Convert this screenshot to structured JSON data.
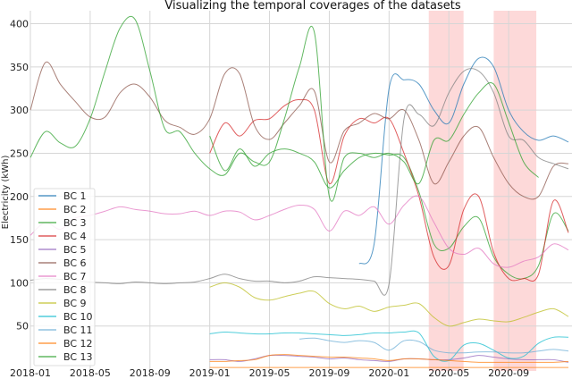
{
  "chart_data": {
    "type": "line",
    "title": "Visualizing the temporal coverages of the datasets",
    "xlabel": "",
    "ylabel": "Electricity (kWh)",
    "xlim": [
      "2018-01",
      "2021-01"
    ],
    "ylim": [
      -2,
      415
    ],
    "x_ticks": [
      "2018-01",
      "2018-05",
      "2018-09",
      "2019-01",
      "2019-05",
      "2019-09",
      "2020-01",
      "2020-05",
      "2020-09"
    ],
    "y_ticks": [
      50,
      100,
      150,
      200,
      250,
      300,
      350,
      400
    ],
    "grid": true,
    "legend_placement": "lower-left",
    "shaded_periods": [
      {
        "start": "2020-03-21",
        "end": "2020-05-31",
        "color": "#fdd9d9"
      },
      {
        "start": "2020-08-01",
        "end": "2020-10-27",
        "color": "#fdd9d9"
      }
    ],
    "x": [
      "2018-01",
      "2018-02",
      "2018-03",
      "2018-04",
      "2018-05",
      "2018-06",
      "2018-07",
      "2018-08",
      "2018-09",
      "2018-10",
      "2018-11",
      "2018-12",
      "2019-01",
      "2019-02",
      "2019-03",
      "2019-04",
      "2019-05",
      "2019-06",
      "2019-07",
      "2019-08",
      "2019-09",
      "2019-10",
      "2019-11",
      "2019-12",
      "2020-01",
      "2020-02",
      "2020-03",
      "2020-04",
      "2020-05",
      "2020-06",
      "2020-07",
      "2020-08",
      "2020-09",
      "2020-10",
      "2020-11",
      "2020-12",
      "2021-01"
    ],
    "series": [
      {
        "name": "BC 1",
        "color": "#1f77b4",
        "values": [
          null,
          null,
          null,
          null,
          null,
          null,
          null,
          null,
          null,
          null,
          null,
          null,
          null,
          null,
          null,
          null,
          null,
          null,
          null,
          null,
          null,
          null,
          122,
          145,
          325,
          335,
          330,
          300,
          285,
          330,
          360,
          350,
          300,
          275,
          265,
          270,
          263
        ]
      },
      {
        "name": "BC 2",
        "color": "#ff7f0e",
        "values": [
          null,
          null,
          null,
          null,
          null,
          null,
          null,
          null,
          null,
          null,
          null,
          null,
          2,
          2,
          2,
          2,
          2,
          2,
          2,
          2,
          2,
          2,
          2,
          2,
          2,
          2,
          2,
          2,
          2,
          2,
          2,
          2,
          2,
          2,
          2,
          2,
          2
        ]
      },
      {
        "name": "BC 3",
        "color": "#2ca02c",
        "values": [
          null,
          null,
          null,
          null,
          null,
          null,
          null,
          null,
          null,
          null,
          null,
          null,
          270,
          230,
          255,
          235,
          250,
          255,
          250,
          240,
          210,
          230,
          245,
          250,
          248,
          245,
          205,
          145,
          140,
          165,
          175,
          130,
          110,
          105,
          120,
          180,
          160
        ]
      },
      {
        "name": "BC 4",
        "color": "#d62728",
        "values": [
          null,
          null,
          null,
          null,
          null,
          null,
          null,
          null,
          null,
          null,
          null,
          null,
          250,
          285,
          270,
          288,
          290,
          305,
          312,
          300,
          215,
          270,
          290,
          285,
          290,
          250,
          200,
          130,
          120,
          185,
          200,
          135,
          105,
          105,
          110,
          195,
          158
        ]
      },
      {
        "name": "BC 5",
        "color": "#9467bd",
        "values": [
          null,
          null,
          null,
          null,
          null,
          null,
          null,
          null,
          null,
          null,
          null,
          null,
          11,
          11,
          9,
          12,
          16,
          16,
          15,
          14,
          12,
          13,
          11,
          10,
          9,
          12,
          12,
          11,
          11,
          13,
          16,
          14,
          12,
          11,
          11,
          11,
          8
        ]
      },
      {
        "name": "BC 6",
        "color": "#8c564b",
        "values": [
          300,
          355,
          330,
          310,
          292,
          292,
          320,
          330,
          315,
          288,
          280,
          272,
          290,
          342,
          342,
          282,
          266,
          285,
          305,
          322,
          240,
          276,
          285,
          296,
          290,
          300,
          265,
          215,
          240,
          270,
          280,
          245,
          215,
          200,
          200,
          235,
          238
        ]
      },
      {
        "name": "BC 7",
        "color": "#e377c2",
        "values": [
          155,
          170,
          162,
          175,
          178,
          183,
          188,
          185,
          183,
          180,
          180,
          183,
          178,
          183,
          182,
          173,
          178,
          185,
          190,
          185,
          160,
          183,
          178,
          188,
          168,
          190,
          200,
          170,
          140,
          133,
          140,
          122,
          118,
          125,
          130,
          145,
          138
        ]
      },
      {
        "name": "BC 8",
        "color": "#7f7f7f",
        "values": [
          103,
          105,
          104,
          103,
          101,
          100,
          99,
          101,
          100,
          99,
          100,
          101,
          105,
          110,
          105,
          102,
          102,
          100,
          102,
          107,
          106,
          105,
          104,
          102,
          99,
          290,
          295,
          282,
          320,
          345,
          345,
          320,
          270,
          265,
          245,
          238,
          232
        ]
      },
      {
        "name": "BC 9",
        "color": "#bcbd22",
        "values": [
          null,
          null,
          null,
          null,
          null,
          null,
          null,
          null,
          null,
          null,
          null,
          null,
          95,
          100,
          95,
          83,
          80,
          84,
          88,
          90,
          76,
          70,
          73,
          67,
          72,
          74,
          76,
          60,
          50,
          54,
          58,
          56,
          55,
          60,
          66,
          70,
          61
        ]
      },
      {
        "name": "BC 10",
        "color": "#17becf",
        "values": [
          null,
          null,
          null,
          null,
          null,
          null,
          null,
          null,
          null,
          null,
          null,
          null,
          41,
          43,
          42,
          41,
          41,
          42,
          42,
          41,
          40,
          39,
          40,
          42,
          42,
          43,
          42,
          15,
          10,
          28,
          30,
          22,
          13,
          15,
          30,
          37,
          37
        ]
      },
      {
        "name": "BC 11",
        "color": "#6baed6",
        "values": [
          null,
          null,
          null,
          null,
          null,
          null,
          null,
          null,
          null,
          null,
          null,
          null,
          null,
          null,
          null,
          null,
          null,
          null,
          35,
          36,
          33,
          31,
          33,
          31,
          22,
          33,
          32,
          22,
          19,
          19,
          20,
          20,
          19,
          19,
          21,
          23,
          21
        ]
      },
      {
        "name": "BC 12",
        "color": "#ff7f0e",
        "values": [
          null,
          null,
          null,
          null,
          null,
          null,
          null,
          null,
          null,
          null,
          null,
          null,
          9,
          9,
          10,
          11,
          16,
          17,
          16,
          15,
          14,
          14,
          13,
          12,
          10,
          12,
          12,
          11,
          10,
          9,
          8,
          8,
          8,
          8,
          8,
          8,
          9
        ]
      },
      {
        "name": "BC 13",
        "color": "#2ca02c",
        "values": [
          245,
          275,
          262,
          258,
          290,
          345,
          395,
          405,
          345,
          278,
          275,
          250,
          232,
          225,
          250,
          240,
          240,
          290,
          350,
          390,
          200,
          245,
          250,
          245,
          250,
          240,
          215,
          265,
          265,
          295,
          320,
          330,
          286,
          240,
          222,
          null,
          null
        ]
      }
    ]
  }
}
